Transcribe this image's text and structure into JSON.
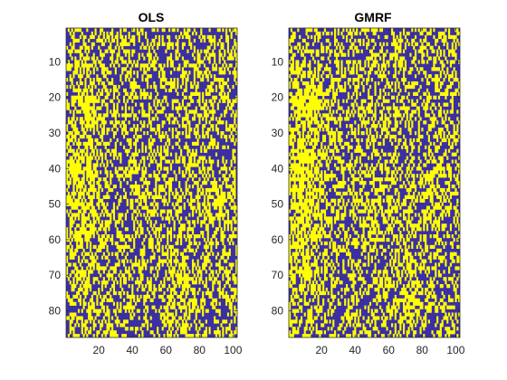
{
  "chart_data": [
    {
      "type": "heatmap",
      "title": "OLS",
      "xlabel": "",
      "ylabel": "",
      "xlim": [
        0.5,
        102.5
      ],
      "ylim": [
        87.5,
        0.5
      ],
      "x_ticks": [
        20,
        40,
        60,
        80,
        100
      ],
      "y_ticks": [
        10,
        20,
        30,
        40,
        50,
        60,
        70,
        80
      ],
      "y_reversed": true,
      "grid_cols": 102,
      "grid_rows": 87,
      "colormap": {
        "0": "#3b2fa5",
        "1": "#ffff00"
      },
      "values_description": "binary map"
    },
    {
      "type": "heatmap",
      "title": "GMRF",
      "xlabel": "",
      "ylabel": "",
      "xlim": [
        0.5,
        102.5
      ],
      "ylim": [
        87.5,
        0.5
      ],
      "x_ticks": [
        20,
        40,
        60,
        80,
        100
      ],
      "y_ticks": [
        10,
        20,
        30,
        40,
        50,
        60,
        70,
        80
      ],
      "y_reversed": true,
      "grid_cols": 102,
      "grid_rows": 87,
      "colormap": {
        "0": "#3b2fa5",
        "1": "#ffff00"
      },
      "values_description": "binary map"
    }
  ]
}
